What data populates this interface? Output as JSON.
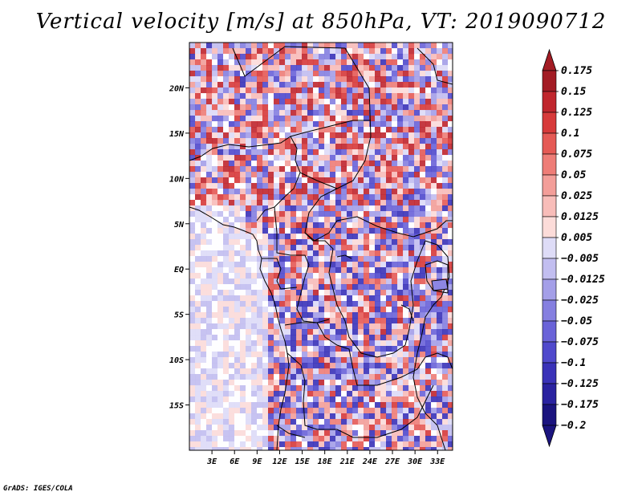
{
  "title": "Vertical velocity [m/s] at 850hPa, VT: 2019090712",
  "credit": "GrADS: IGES/COLA",
  "map": {
    "lon_range": [
      0,
      35
    ],
    "lat_range": [
      -20,
      25
    ],
    "lat_ticks": [
      "20N",
      "15N",
      "10N",
      "5N",
      "EQ",
      "5S",
      "10S",
      "15S"
    ],
    "lat_tick_values": [
      20,
      15,
      10,
      5,
      0,
      -5,
      -10,
      -15
    ],
    "lon_ticks": [
      "3E",
      "6E",
      "9E",
      "12E",
      "15E",
      "18E",
      "21E",
      "24E",
      "27E",
      "30E",
      "33E"
    ],
    "lon_tick_values": [
      3,
      6,
      9,
      12,
      15,
      18,
      21,
      24,
      27,
      30,
      33
    ]
  },
  "colorbar": {
    "labels": [
      "0.175",
      "0.15",
      "0.125",
      "0.1",
      "0.075",
      "0.05",
      "0.025",
      "0.0125",
      "0.005",
      "−0.005",
      "−0.0125",
      "−0.025",
      "−0.05",
      "−0.075",
      "−0.1",
      "−0.125",
      "−0.175",
      "−0.2"
    ],
    "colors": [
      "#a31c24",
      "#c0262d",
      "#d73a3a",
      "#e55a55",
      "#ee7d77",
      "#f39e99",
      "#f8bdb9",
      "#fcdcd9",
      "#ffffff",
      "#dedcf7",
      "#c2bef0",
      "#a49fe8",
      "#857fe0",
      "#6a63d8",
      "#5049cc",
      "#3a32b8",
      "#2a22a0",
      "#1b147f"
    ]
  }
}
